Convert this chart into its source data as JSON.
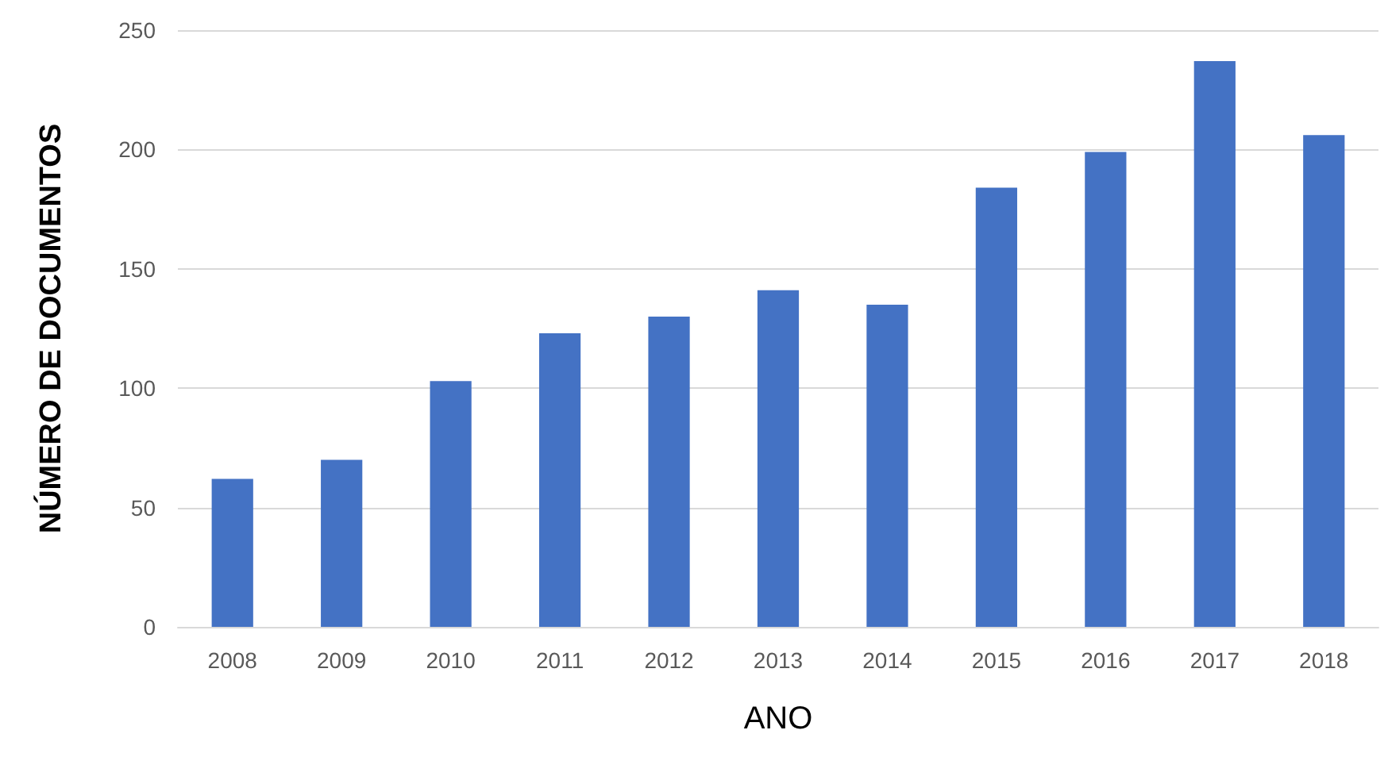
{
  "chart_data": {
    "type": "bar",
    "xlabel": "ANO",
    "ylabel": "NÚMERO DE DOCUMENTOS",
    "categories": [
      "2008",
      "2009",
      "2010",
      "2011",
      "2012",
      "2013",
      "2014",
      "2015",
      "2016",
      "2017",
      "2018"
    ],
    "values": [
      62,
      70,
      103,
      123,
      130,
      141,
      135,
      184,
      199,
      237,
      206
    ],
    "color": "#4472c4",
    "ylim": [
      0,
      250
    ],
    "yticks": [
      0,
      50,
      100,
      150,
      200,
      250
    ],
    "grid": "y"
  }
}
